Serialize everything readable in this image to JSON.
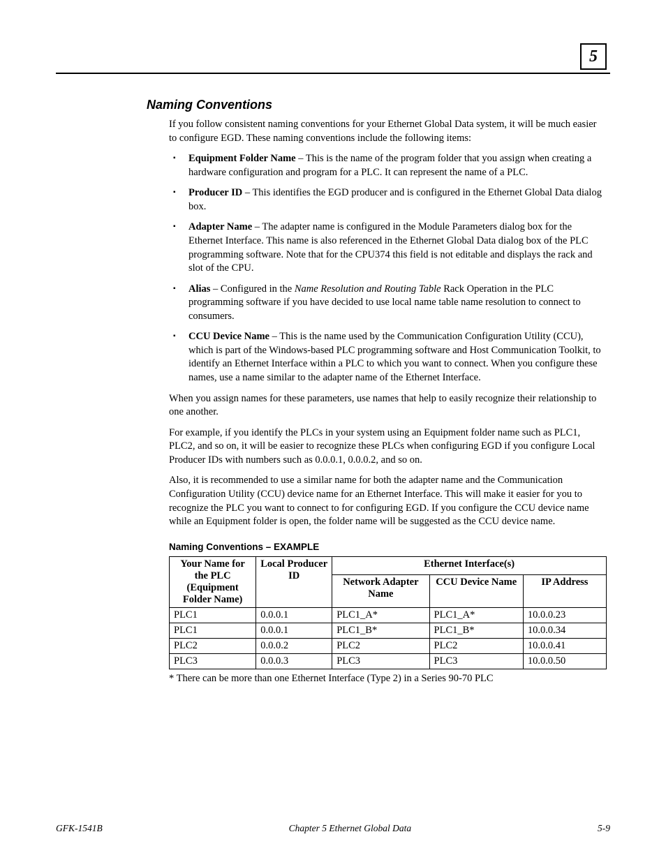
{
  "chapter_number": "5",
  "section_title": "Naming Conventions",
  "intro_paragraph": "If you follow consistent naming conventions for your Ethernet Global Data system, it will be much easier to configure EGD.  These naming conventions include the following items:",
  "bullets": [
    {
      "term": "Equipment Folder Name",
      "desc": " – This is the name of the program folder that you assign when creating a hardware configuration and program for a PLC.  It can represent the name of a PLC."
    },
    {
      "term": "Producer ID",
      "desc": " – This identifies the EGD producer and is configured in the Ethernet Global Data dialog box."
    },
    {
      "term": "Adapter Name",
      "desc": " – The adapter name is configured in the Module Parameters dialog box for the Ethernet Interface.  This name is also referenced in the Ethernet Global Data dialog box of the PLC programming software. Note that for the CPU374 this field is not editable and displays the rack and slot of the CPU."
    },
    {
      "term": "Alias",
      "desc_pre": " – Configured in the ",
      "desc_italic": "Name Resolution and Routing Table",
      "desc_post": " Rack Operation in the PLC programming software if you have decided to use local name table name resolution to connect to consumers."
    },
    {
      "term": "CCU Device Name",
      "desc": " – This is the name used by the Communication Configuration Utility (CCU), which is part of the Windows-based PLC programming software and Host Communication Toolkit, to identify an Ethernet Interface within a PLC to which you want to connect.  When you configure these names, use a name similar to the adapter name of the Ethernet Interface."
    }
  ],
  "para2": "When you assign names for these parameters, use names that help to easily recognize their relationship to one another.",
  "para3": "For example, if you identify the PLCs in your system using an Equipment folder name such as PLC1, PLC2, and so on, it will be easier to recognize these PLCs when configuring EGD if you configure Local Producer IDs with numbers such as 0.0.0.1, 0.0.0.2, and so on.",
  "para4": "Also, it is recommended to use a similar name for both the adapter name and the Communication Configuration Utility (CCU) device name for an Ethernet Interface.  This will make it easier for you to recognize the PLC you want to connect to for configuring EGD.  If you configure the CCU device name while an Equipment folder is open, the folder name will be suggested as the CCU device name.",
  "subsection_title": "Naming Conventions – EXAMPLE",
  "table": {
    "col1_header": "Your Name for the PLC (Equipment Folder Name)",
    "col2_header": "Local Producer ID",
    "span_header": "Ethernet Interface(s)",
    "col3_header": "Network Adapter Name",
    "col4_header": "CCU Device Name",
    "col5_header": "IP Address",
    "rows": [
      [
        "PLC1",
        "0.0.0.1",
        "PLC1_A*",
        "PLC1_A*",
        "10.0.0.23"
      ],
      [
        "PLC1",
        "0.0.0.1",
        "PLC1_B*",
        "PLC1_B*",
        "10.0.0.34"
      ],
      [
        "PLC2",
        "0.0.0.2",
        "PLC2",
        "PLC2",
        "10.0.0.41"
      ],
      [
        "PLC3",
        "0.0.0.3",
        "PLC3",
        "PLC3",
        "10.0.0.50"
      ]
    ]
  },
  "table_footnote": "* There can be more than one Ethernet Interface (Type 2) in a Series 90-70 PLC",
  "footer": {
    "left": "GFK-1541B",
    "center": "Chapter 5  Ethernet Global Data",
    "right": "5-9"
  }
}
